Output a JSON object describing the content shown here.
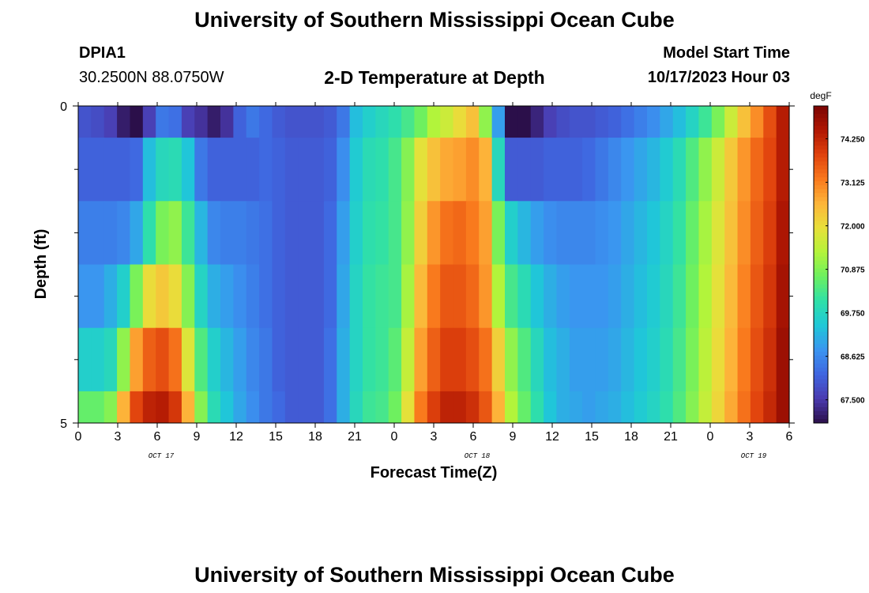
{
  "header": {
    "title": "University of Southern Mississippi Ocean Cube",
    "station_id": "DPIA1",
    "coordinates": "30.2500N  88.0750W",
    "plot_title": "2-D Temperature at Depth",
    "model_start_label": "Model Start Time",
    "model_start_value": "10/17/2023 Hour 03"
  },
  "footer": {
    "title": "University of Southern Mississippi Ocean Cube"
  },
  "chart_data": {
    "type": "heatmap",
    "title": "2-D Temperature at Depth",
    "xlabel": "Forecast Time(Z)",
    "ylabel": "Depth (ft)",
    "x_tick_labels": [
      "0",
      "3",
      "6",
      "9",
      "12",
      "15",
      "18",
      "21",
      "0",
      "3",
      "6",
      "9",
      "12",
      "15",
      "18",
      "21",
      "0",
      "3",
      "6"
    ],
    "date_labels": [
      "OCT 17",
      "OCT 18",
      "OCT 19"
    ],
    "y_tick_labels": [
      "0",
      "5"
    ],
    "ylim": [
      0,
      5
    ],
    "x_hours": [
      0,
      1,
      2,
      3,
      4,
      5,
      6,
      7,
      8,
      9,
      10,
      11,
      12,
      13,
      14,
      15,
      16,
      17,
      18,
      19,
      20,
      21,
      22,
      23,
      24,
      25,
      26,
      27,
      28,
      29,
      30,
      31,
      32,
      33,
      34,
      35,
      36,
      37,
      38,
      39,
      40,
      41,
      42,
      43,
      44,
      45,
      46,
      47,
      48,
      49,
      50,
      51,
      52,
      53,
      54
    ],
    "depth_rows_ft": [
      "0-0.5",
      "0.5-1.5",
      "1.5-2.5",
      "2.5-3.5",
      "3.5-4.5",
      "4.5-5"
    ],
    "values": [
      [
        67.9,
        67.8,
        67.6,
        67.1,
        66.9,
        67.6,
        68.4,
        68.3,
        67.6,
        67.4,
        67.1,
        67.4,
        68.1,
        68.4,
        68.2,
        68.0,
        67.9,
        67.9,
        67.9,
        68.0,
        68.4,
        69.3,
        69.6,
        69.8,
        70.0,
        70.3,
        70.7,
        71.3,
        71.6,
        72.0,
        72.4,
        71.0,
        68.9,
        66.0,
        66.8,
        67.2,
        67.6,
        67.8,
        67.9,
        67.9,
        68.0,
        68.1,
        68.3,
        68.5,
        68.7,
        69.0,
        69.3,
        69.7,
        70.2,
        70.8,
        71.6,
        72.4,
        73.0,
        73.7,
        74.4
      ],
      [
        68.1,
        68.1,
        68.1,
        68.1,
        68.2,
        69.3,
        69.8,
        69.9,
        69.4,
        68.4,
        68.1,
        68.1,
        68.1,
        68.1,
        68.2,
        68.1,
        68.0,
        68.0,
        68.0,
        68.1,
        68.7,
        69.5,
        69.9,
        70.0,
        70.3,
        70.9,
        71.9,
        72.4,
        72.7,
        72.8,
        73.0,
        72.6,
        69.8,
        68.0,
        68.0,
        68.0,
        68.1,
        68.1,
        68.1,
        68.2,
        68.4,
        68.6,
        68.8,
        69.0,
        69.2,
        69.5,
        69.9,
        70.4,
        71.0,
        71.6,
        72.3,
        72.9,
        73.4,
        73.8,
        74.4
      ],
      [
        68.5,
        68.5,
        68.5,
        68.6,
        69.0,
        70.0,
        70.8,
        71.0,
        70.2,
        69.2,
        68.6,
        68.5,
        68.5,
        68.4,
        68.3,
        68.1,
        68.0,
        68.0,
        68.0,
        68.2,
        68.9,
        69.6,
        70.0,
        70.1,
        70.3,
        71.0,
        72.2,
        72.9,
        73.3,
        73.4,
        73.2,
        72.8,
        70.8,
        69.6,
        69.2,
        68.9,
        68.7,
        68.6,
        68.6,
        68.6,
        68.7,
        68.8,
        69.0,
        69.2,
        69.4,
        69.7,
        70.1,
        70.6,
        71.2,
        71.8,
        72.4,
        73.0,
        73.5,
        73.9,
        74.5
      ],
      [
        68.8,
        68.8,
        69.1,
        69.6,
        70.8,
        72.0,
        72.3,
        72.0,
        70.9,
        69.7,
        69.1,
        68.9,
        68.7,
        68.5,
        68.3,
        68.1,
        68.0,
        68.0,
        68.0,
        68.2,
        69.0,
        69.7,
        70.1,
        70.2,
        70.3,
        71.2,
        72.5,
        73.2,
        73.6,
        73.6,
        73.4,
        72.9,
        71.3,
        70.3,
        69.9,
        69.4,
        69.1,
        68.9,
        68.8,
        68.8,
        68.8,
        68.9,
        69.1,
        69.3,
        69.5,
        69.8,
        70.2,
        70.7,
        71.3,
        71.9,
        72.5,
        73.1,
        73.6,
        74.0,
        74.6
      ],
      [
        69.6,
        69.6,
        69.8,
        71.0,
        72.8,
        73.5,
        73.7,
        73.3,
        71.8,
        70.4,
        69.6,
        69.2,
        68.9,
        68.6,
        68.4,
        68.1,
        68.0,
        68.0,
        68.0,
        68.3,
        69.1,
        69.7,
        70.1,
        70.2,
        70.5,
        71.5,
        72.8,
        73.5,
        73.9,
        73.9,
        73.7,
        73.3,
        72.2,
        71.0,
        70.4,
        69.8,
        69.3,
        69.1,
        68.9,
        68.9,
        68.9,
        69.0,
        69.2,
        69.4,
        69.6,
        69.9,
        70.3,
        70.8,
        71.4,
        72.0,
        72.6,
        73.2,
        73.7,
        74.1,
        74.7
      ],
      [
        70.6,
        70.6,
        70.9,
        72.6,
        73.8,
        74.3,
        74.4,
        74.0,
        72.6,
        70.9,
        69.9,
        69.4,
        69.0,
        68.7,
        68.4,
        68.2,
        68.0,
        68.0,
        68.0,
        68.3,
        69.1,
        69.8,
        70.2,
        70.3,
        70.7,
        71.9,
        73.2,
        73.9,
        74.3,
        74.3,
        74.1,
        73.6,
        72.6,
        71.3,
        70.6,
        70.0,
        69.4,
        69.1,
        69.0,
        68.9,
        69.0,
        69.1,
        69.3,
        69.5,
        69.7,
        70.0,
        70.4,
        70.9,
        71.5,
        72.1,
        72.7,
        73.3,
        73.8,
        74.2,
        74.7
      ]
    ],
    "colorbar": {
      "unit": "degF",
      "tick_labels": [
        "74.250",
        "73.125",
        "72.000",
        "70.875",
        "69.750",
        "68.625",
        "67.500"
      ],
      "range": [
        66.9,
        75.1
      ],
      "colors": [
        "#2b0f4a",
        "#4a3bb0",
        "#3f66e0",
        "#3a95f0",
        "#1fc8d8",
        "#2fe0a8",
        "#6cf060",
        "#b4f43a",
        "#e8e03a",
        "#fdb53a",
        "#f9791d",
        "#e0420d",
        "#b01703",
        "#7a0403"
      ]
    }
  }
}
